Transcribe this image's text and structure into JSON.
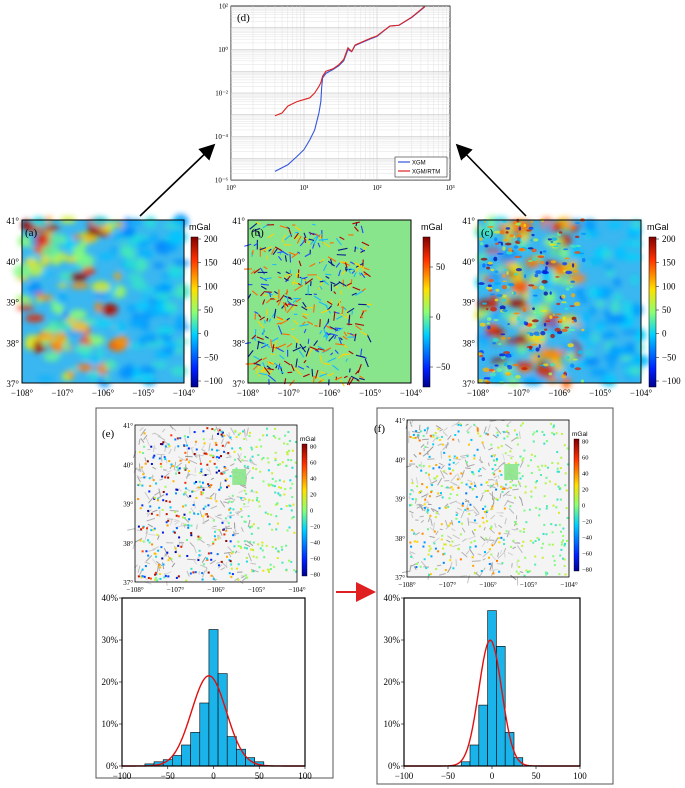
{
  "panel_d": {
    "label": "(d)",
    "x_ticks": [
      "10⁰",
      "10¹",
      "10²",
      "10³"
    ],
    "y_ticks": [
      "10²",
      "10⁰",
      "10⁻²",
      "10⁻⁴",
      "10⁻⁶"
    ],
    "legend": [
      {
        "name": "XGM",
        "color": "#3355dd"
      },
      {
        "name": "XGM/RTM",
        "color": "#dd2222"
      }
    ]
  },
  "maps": {
    "lat_ticks": [
      "41°",
      "40°",
      "39°",
      "38°",
      "37°"
    ],
    "lon_ticks": [
      "−108°",
      "−107°",
      "−106°",
      "−105°",
      "−104°"
    ],
    "unit": "mGal",
    "panels": [
      {
        "label": "(a)",
        "cbar": [
          "200",
          "150",
          "100",
          "50",
          "0",
          "−50",
          "−100"
        ]
      },
      {
        "label": "(b)",
        "cbar": [
          "50",
          "0",
          "−50"
        ]
      },
      {
        "label": "(c)",
        "cbar": [
          "200",
          "150",
          "100",
          "50",
          "0",
          "−50",
          "−100"
        ]
      }
    ]
  },
  "residual_maps": {
    "unit": "mGal",
    "lat_ticks": [
      "41°",
      "40°",
      "39°",
      "38°",
      "37°"
    ],
    "lon_ticks": [
      "−108°",
      "−107°",
      "−106°",
      "−105°",
      "−104°"
    ],
    "cbar": [
      "80",
      "60",
      "40",
      "20",
      "0",
      "−20",
      "−40",
      "−60",
      "−80"
    ],
    "panels": [
      {
        "label": "(e)"
      },
      {
        "label": "(f)"
      }
    ]
  },
  "chart_data": [
    {
      "type": "line",
      "title": "(d)",
      "x_scale": "log",
      "y_scale": "log",
      "xlim": [
        1,
        1000
      ],
      "ylim": [
        1e-06,
        100
      ],
      "grid": true,
      "legend_position": "bottom-right",
      "series": [
        {
          "name": "XGM",
          "x": [
            4,
            6,
            8,
            10,
            12,
            14,
            15,
            16,
            17,
            17.5,
            18,
            20,
            25,
            30,
            35,
            40,
            45,
            50,
            60,
            80,
            100,
            150,
            200,
            300,
            450
          ],
          "y": [
            2.5e-06,
            5e-06,
            1.2e-05,
            2.5e-05,
            7e-05,
            0.0002,
            0.0005,
            0.0012,
            0.004,
            0.02,
            0.05,
            0.08,
            0.12,
            0.18,
            0.3,
            1.0,
            0.8,
            1.5,
            2.0,
            3.0,
            4.0,
            12,
            13,
            30,
            90
          ]
        },
        {
          "name": "XGM/RTM",
          "x": [
            4,
            5,
            6,
            8,
            10,
            12,
            14,
            16,
            17,
            18,
            20,
            25,
            30,
            35,
            40,
            45,
            50,
            60,
            80,
            100,
            150,
            200,
            300,
            450
          ],
          "y": [
            0.0009,
            0.0012,
            0.0025,
            0.004,
            0.005,
            0.006,
            0.01,
            0.02,
            0.03,
            0.06,
            0.1,
            0.13,
            0.2,
            0.35,
            1.2,
            0.8,
            1.6,
            2.1,
            3.2,
            4.2,
            12,
            13,
            31,
            95
          ]
        }
      ]
    },
    {
      "type": "bar",
      "title": "(e)",
      "xlim": [
        -100,
        100
      ],
      "ylim": [
        0,
        40
      ],
      "x_ticks": [
        "−100",
        "−50",
        "0",
        "50",
        "100"
      ],
      "y_ticks": [
        "0%",
        "10%",
        "20%",
        "30%",
        "40%"
      ],
      "bin_edges": [
        -75,
        -65,
        -55,
        -45,
        -35,
        -25,
        -15,
        -5,
        5,
        15,
        25,
        35,
        45,
        55
      ],
      "values": [
        0.5,
        1,
        1.5,
        2.5,
        5,
        8,
        15,
        32.5,
        22,
        7,
        4,
        2,
        1
      ],
      "fit_curve": {
        "mean": -5,
        "std": 19,
        "peak": 21.5
      }
    },
    {
      "type": "bar",
      "title": "(f)",
      "xlim": [
        -100,
        100
      ],
      "ylim": [
        0,
        40
      ],
      "x_ticks": [
        "−100",
        "−50",
        "0",
        "50",
        "100"
      ],
      "y_ticks": [
        "0%",
        "10%",
        "20%",
        "30%",
        "40%"
      ],
      "bin_edges": [
        -35,
        -25,
        -15,
        -5,
        5,
        15,
        25,
        35
      ],
      "values": [
        1,
        5,
        14.5,
        37,
        28.5,
        8,
        2
      ],
      "fit_curve": {
        "mean": -2,
        "std": 13,
        "peak": 30
      }
    }
  ]
}
